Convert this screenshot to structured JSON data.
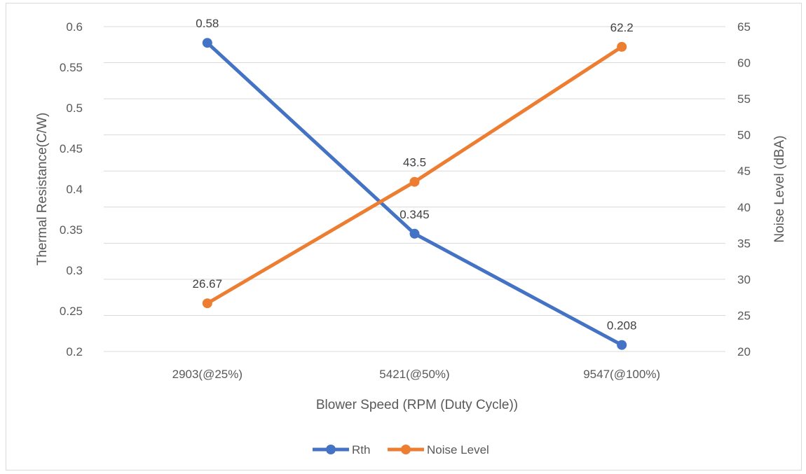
{
  "chart_data": {
    "type": "line",
    "categories": [
      "2903(@25%)",
      "5421(@50%)",
      "9547(@100%)"
    ],
    "xlabel": "Blower Speed (RPM (Duty Cycle))",
    "ylabel": "Thermal Resistance(C/W)",
    "y2label": "Noise Level (dBA)",
    "ylim": [
      0.2,
      0.6
    ],
    "y_ticks": [
      "0.2",
      "0.25",
      "0.3",
      "0.35",
      "0.4",
      "0.45",
      "0.5",
      "0.55",
      "0.6"
    ],
    "y2lim": [
      20,
      65
    ],
    "y2_ticks": [
      "20",
      "25",
      "30",
      "35",
      "40",
      "45",
      "50",
      "55",
      "60",
      "65"
    ],
    "grid": true,
    "legend_position": "bottom",
    "series": [
      {
        "name": "Rth",
        "axis": "left",
        "color": "#4472C4",
        "values": [
          0.58,
          0.345,
          0.208
        ],
        "labels": [
          "0.58",
          "0.345",
          "0.208"
        ]
      },
      {
        "name": "Noise Level",
        "axis": "right",
        "color": "#ED7D31",
        "values": [
          26.67,
          43.5,
          62.2
        ],
        "labels": [
          "26.67",
          "43.5",
          "62.2"
        ]
      }
    ]
  }
}
